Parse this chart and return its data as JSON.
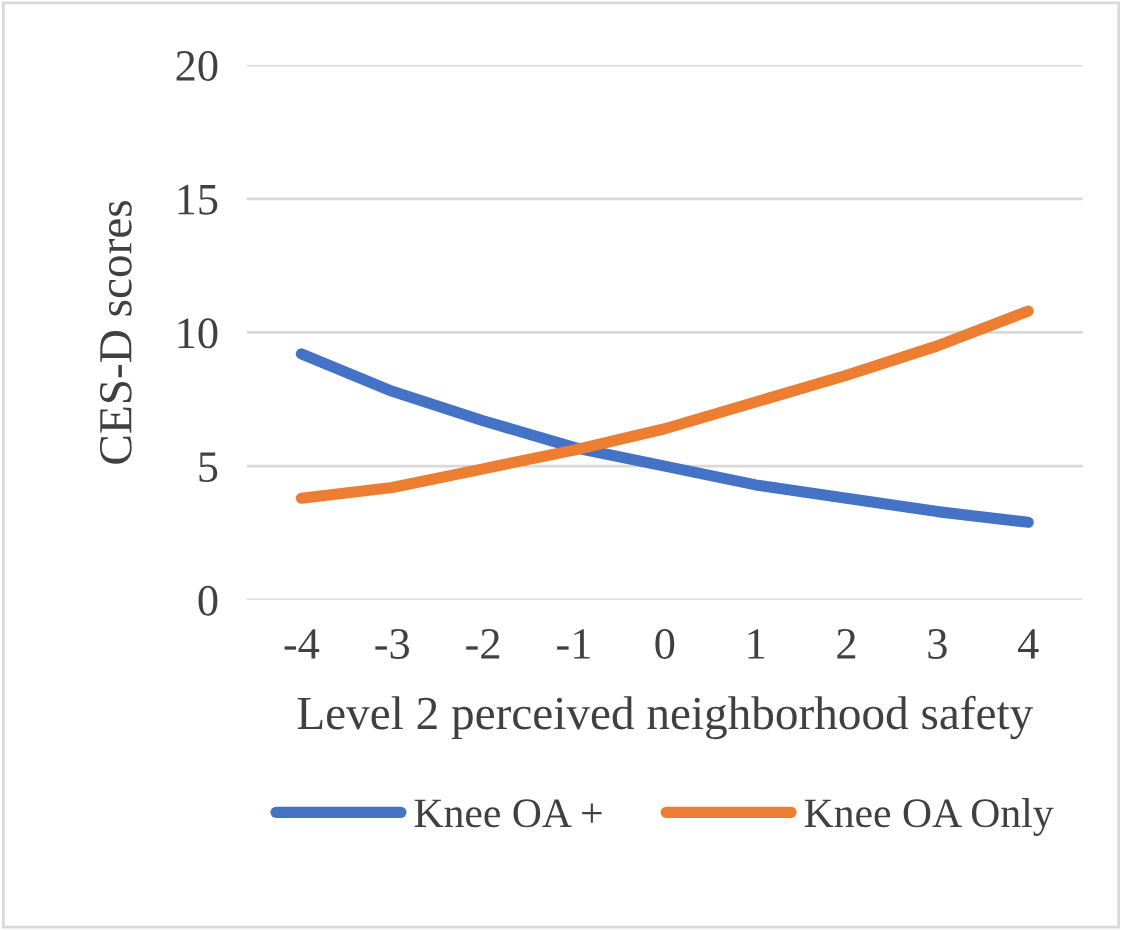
{
  "chart_data": {
    "type": "line",
    "xlabel": "Level 2 perceived neighborhood safety",
    "ylabel": "CES-D scores",
    "categories": [
      "-4",
      "-3",
      "-2",
      "-1",
      "0",
      "1",
      "2",
      "3",
      "4"
    ],
    "series": [
      {
        "name": "Knee OA +",
        "color": "#4472c4",
        "values": [
          9.2,
          7.8,
          6.7,
          5.7,
          5.0,
          4.3,
          3.8,
          3.3,
          2.9
        ]
      },
      {
        "name": "Knee OA Only",
        "color": "#ed7d31",
        "values": [
          3.8,
          4.2,
          4.9,
          5.6,
          6.4,
          7.4,
          8.4,
          9.5,
          10.8
        ]
      }
    ],
    "ylim": [
      0,
      20
    ],
    "yticks": [
      0,
      5,
      10,
      15,
      20
    ],
    "grid": "y",
    "legend": "bottom",
    "marker": "none",
    "line_style": "solid"
  }
}
